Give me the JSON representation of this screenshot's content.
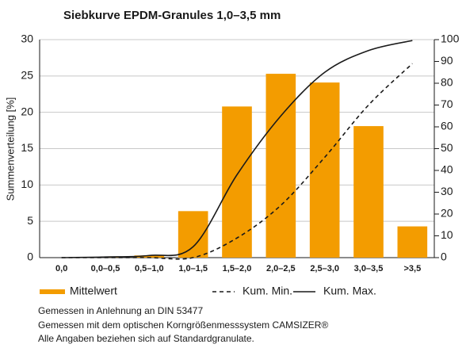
{
  "chart_data": {
    "type": "bar",
    "title": "Siebkurve EPDM-Granules 1,0–3,5 mm",
    "y_label": "Summenverteilung [%]",
    "categories": [
      "0,0",
      "0,0–0,5",
      "0,5–1,0",
      "1,0–1,5",
      "1,5–2,0",
      "2,0–2,5",
      "2,5–3,0",
      "3,0–3,5",
      ">3,5"
    ],
    "series": [
      {
        "name": "Mittelwert",
        "type": "bar",
        "color": "#f39c00",
        "values": [
          0,
          0.1,
          0.3,
          6.4,
          20.8,
          25.3,
          24.1,
          18.1,
          4.3
        ]
      },
      {
        "name": "Kum. Min.",
        "type": "line",
        "axis": "y2",
        "dashed": true,
        "color": "#1a1a1a",
        "values": [
          0,
          0,
          0,
          0,
          9,
          24,
          46,
          70,
          89
        ]
      },
      {
        "name": "Kum. Max.",
        "type": "line",
        "axis": "y2",
        "dashed": false,
        "color": "#1a1a1a",
        "values": [
          0,
          0.3,
          1,
          5,
          38,
          65,
          85,
          95,
          99.6
        ]
      }
    ],
    "ylim": [
      0,
      30
    ],
    "yticks": [
      0,
      5,
      10,
      15,
      20,
      25,
      30
    ],
    "y2lim": [
      0,
      100
    ],
    "y2ticks": [
      0,
      10,
      20,
      30,
      40,
      50,
      60,
      70,
      80,
      90,
      100
    ],
    "grid": true,
    "notes": [
      "Gemessen in Anlehnung an DIN 53477",
      "Gemessen mit dem optischen Korngrößenmesssystem CAMSIZER®",
      "Alle Angaben beziehen sich auf Standardgranulate."
    ]
  }
}
